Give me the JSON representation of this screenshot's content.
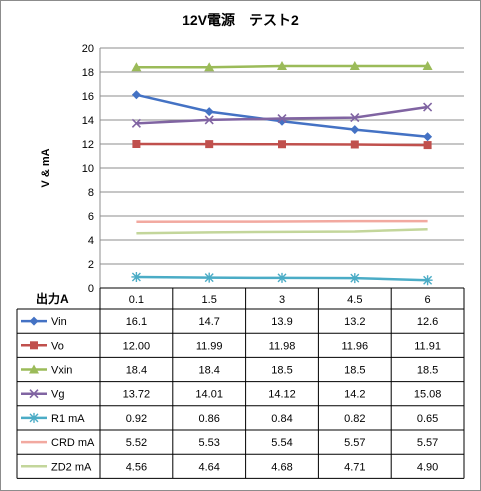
{
  "chart_data": {
    "type": "line",
    "title": "12V電源　テスト2",
    "ylabel": "V & mA",
    "xlabel": "出力A",
    "ylim": [
      0,
      20
    ],
    "yticks": [
      0,
      2,
      4,
      6,
      8,
      10,
      12,
      14,
      16,
      18,
      20
    ],
    "grid": true,
    "categories": [
      "0.1",
      "1.5",
      "3",
      "4.5",
      "6"
    ],
    "series": [
      {
        "name": "Vin",
        "color": "#4472C4",
        "marker": "diamond",
        "values": [
          16.1,
          14.7,
          13.9,
          13.2,
          12.6
        ],
        "labels": [
          "16.1",
          "14.7",
          "13.9",
          "13.2",
          "12.6"
        ]
      },
      {
        "name": "Vo",
        "color": "#C0504D",
        "marker": "square",
        "values": [
          12.0,
          11.99,
          11.98,
          11.96,
          11.91
        ],
        "labels": [
          "12.00",
          "11.99",
          "11.98",
          "11.96",
          "11.91"
        ]
      },
      {
        "name": "Vxin",
        "color": "#9BBB59",
        "marker": "triangle",
        "values": [
          18.4,
          18.4,
          18.5,
          18.5,
          18.5
        ],
        "labels": [
          "18.4",
          "18.4",
          "18.5",
          "18.5",
          "18.5"
        ]
      },
      {
        "name": "Vg",
        "color": "#8064A2",
        "marker": "x",
        "values": [
          13.72,
          14.01,
          14.12,
          14.2,
          15.08
        ],
        "labels": [
          "13.72",
          "14.01",
          "14.12",
          "14.2",
          "15.08"
        ]
      },
      {
        "name": "R1 mA",
        "color": "#4BACC6",
        "marker": "star",
        "values": [
          0.92,
          0.86,
          0.84,
          0.82,
          0.65
        ],
        "labels": [
          "0.92",
          "0.86",
          "0.84",
          "0.82",
          "0.65"
        ]
      },
      {
        "name": "CRD mA",
        "color": "#F2A9A0",
        "marker": "none",
        "values": [
          5.52,
          5.53,
          5.54,
          5.57,
          5.57
        ],
        "labels": [
          "5.52",
          "5.53",
          "5.54",
          "5.57",
          "5.57"
        ]
      },
      {
        "name": "ZD2 mA",
        "color": "#C3D69B",
        "marker": "none",
        "values": [
          4.56,
          4.64,
          4.68,
          4.71,
          4.9
        ],
        "labels": [
          "4.56",
          "4.64",
          "4.68",
          "4.71",
          "4.90"
        ]
      }
    ]
  }
}
